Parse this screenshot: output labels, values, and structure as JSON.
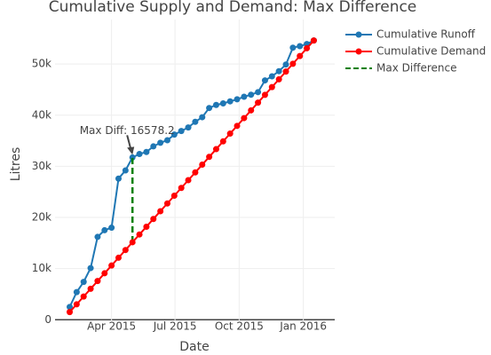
{
  "chart_data": {
    "type": "line",
    "title": "Cumulative Supply and Demand: Max Difference",
    "x_label": "Date",
    "y_label": "Litres",
    "x": [
      "2015-01-31",
      "2015-02-10",
      "2015-02-20",
      "2015-03-02",
      "2015-03-12",
      "2015-03-22",
      "2015-04-01",
      "2015-04-11",
      "2015-04-21",
      "2015-05-01",
      "2015-05-11",
      "2015-05-21",
      "2015-05-31",
      "2015-06-10",
      "2015-06-20",
      "2015-06-30",
      "2015-07-10",
      "2015-07-20",
      "2015-07-30",
      "2015-08-09",
      "2015-08-19",
      "2015-08-29",
      "2015-09-08",
      "2015-09-18",
      "2015-09-28",
      "2015-10-08",
      "2015-10-18",
      "2015-10-28",
      "2015-11-07",
      "2015-11-17",
      "2015-11-27",
      "2015-12-07",
      "2015-12-17",
      "2015-12-27",
      "2016-01-06",
      "2016-01-16"
    ],
    "series": [
      {
        "name": "Cumulative Runoff",
        "color": "#1f77b4",
        "values": [
          2500,
          5400,
          7400,
          10100,
          16200,
          17500,
          18000,
          27600,
          29200,
          31731.2,
          32400,
          32800,
          33900,
          34600,
          35100,
          36200,
          36900,
          37600,
          38700,
          39600,
          41400,
          42000,
          42300,
          42700,
          43100,
          43600,
          44000,
          44500,
          46800,
          47600,
          48600,
          49900,
          53200,
          53500,
          53900,
          54600
        ]
      },
      {
        "name": "Cumulative Demand",
        "color": "#ff0000",
        "values": [
          1500,
          3017,
          4534,
          6051,
          7568,
          9085,
          10602,
          12119,
          13636,
          15153,
          16670,
          18187,
          19704,
          21221,
          22738,
          24255,
          25772,
          27289,
          28806,
          30323,
          31840,
          33357,
          34874,
          36391,
          37908,
          39425,
          40942,
          42459,
          43976,
          45493,
          47010,
          48527,
          50044,
          51561,
          53078,
          54595
        ]
      }
    ],
    "max_difference": {
      "name": "Max Difference",
      "color": "#008000",
      "x": [
        "2015-05-01",
        "2015-05-01"
      ],
      "values": [
        15153,
        31731.2
      ]
    },
    "annotation": {
      "text": "Max Diff: 16578.2",
      "x": "2015-05-01",
      "y": 31731.2
    },
    "xlim": [
      "2015-01-10",
      "2016-02-15"
    ],
    "xticks": [
      {
        "value": "2015-04-01",
        "label": "Apr 2015"
      },
      {
        "value": "2015-07-01",
        "label": "Jul 2015"
      },
      {
        "value": "2015-10-01",
        "label": "Oct 2015"
      },
      {
        "value": "2016-01-01",
        "label": "Jan 2016"
      }
    ],
    "ylim": [
      -300,
      58700
    ],
    "yticks": [
      0,
      {
        "value": 10000,
        "label": "10k"
      },
      {
        "value": 20000,
        "label": "20k"
      },
      {
        "value": 30000,
        "label": "30k"
      },
      {
        "value": 40000,
        "label": "40k"
      },
      {
        "value": 50000,
        "label": "50k"
      }
    ],
    "grid": true,
    "legend": "top-right"
  }
}
